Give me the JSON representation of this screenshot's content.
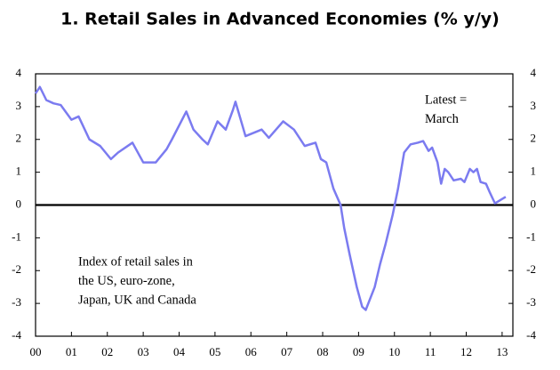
{
  "chart_data": {
    "type": "line",
    "title": "1. Retail Sales in Advanced Economies (% y/y)",
    "annotations": [
      [
        "Latest =",
        "March"
      ],
      [
        "Index of retail sales in",
        "the US, euro-zone,",
        "Japan, UK and Canada"
      ]
    ],
    "x": [
      0,
      0.12,
      0.3,
      0.5,
      0.7,
      1.0,
      1.2,
      1.5,
      1.8,
      2.1,
      2.3,
      2.7,
      3.0,
      3.35,
      3.65,
      3.8,
      4.2,
      4.4,
      4.65,
      4.8,
      5.07,
      5.3,
      5.5,
      5.57,
      5.85,
      6.3,
      6.5,
      6.9,
      7.2,
      7.5,
      7.8,
      7.95,
      8.1,
      8.3,
      8.5,
      8.6,
      8.75,
      8.95,
      9.1,
      9.2,
      9.45,
      9.6,
      9.75,
      9.95,
      10.1,
      10.27,
      10.45,
      10.65,
      10.8,
      10.95,
      11.05,
      11.2,
      11.3,
      11.4,
      11.5,
      11.65,
      11.85,
      11.95,
      12.1,
      12.2,
      12.3,
      12.4,
      12.55,
      12.65,
      12.8,
      12.95,
      13.1
    ],
    "series": [
      {
        "name": "Retail sales",
        "color": "#7b7bf0",
        "values": [
          3.4,
          3.6,
          3.2,
          3.1,
          3.05,
          2.6,
          2.7,
          2.0,
          1.8,
          1.4,
          1.6,
          1.9,
          1.3,
          1.3,
          1.7,
          2.0,
          2.85,
          2.3,
          2.0,
          1.85,
          2.55,
          2.3,
          2.9,
          3.15,
          2.1,
          2.3,
          2.05,
          2.55,
          2.3,
          1.8,
          1.9,
          1.4,
          1.3,
          0.5,
          0.0,
          -0.7,
          -1.5,
          -2.5,
          -3.1,
          -3.2,
          -2.5,
          -1.8,
          -1.2,
          -0.3,
          0.5,
          1.6,
          1.85,
          1.9,
          1.95,
          1.65,
          1.75,
          1.3,
          0.65,
          1.1,
          1.0,
          0.75,
          0.8,
          0.7,
          1.1,
          1.0,
          1.1,
          0.7,
          0.65,
          0.4,
          0.05,
          0.15,
          0.25
        ]
      }
    ],
    "xlim": [
      0,
      13.3
    ],
    "xticks": [
      {
        "value": 0,
        "label": "00"
      },
      {
        "value": 1,
        "label": "01"
      },
      {
        "value": 2,
        "label": "02"
      },
      {
        "value": 3,
        "label": "03"
      },
      {
        "value": 4,
        "label": "04"
      },
      {
        "value": 5,
        "label": "05"
      },
      {
        "value": 6,
        "label": "06"
      },
      {
        "value": 7,
        "label": "07"
      },
      {
        "value": 8,
        "label": "08"
      },
      {
        "value": 9,
        "label": "09"
      },
      {
        "value": 10,
        "label": "10"
      },
      {
        "value": 11,
        "label": "11"
      },
      {
        "value": 12,
        "label": "12"
      },
      {
        "value": 13,
        "label": "13"
      }
    ],
    "ylim": [
      -4,
      4
    ],
    "yticks": [
      -4,
      -3,
      -2,
      -1,
      0,
      1,
      2,
      3,
      4
    ],
    "y2lim": [
      -4,
      4
    ],
    "y2ticks": [
      -4,
      -3,
      -2,
      -1,
      0,
      1,
      2,
      3,
      4
    ]
  }
}
